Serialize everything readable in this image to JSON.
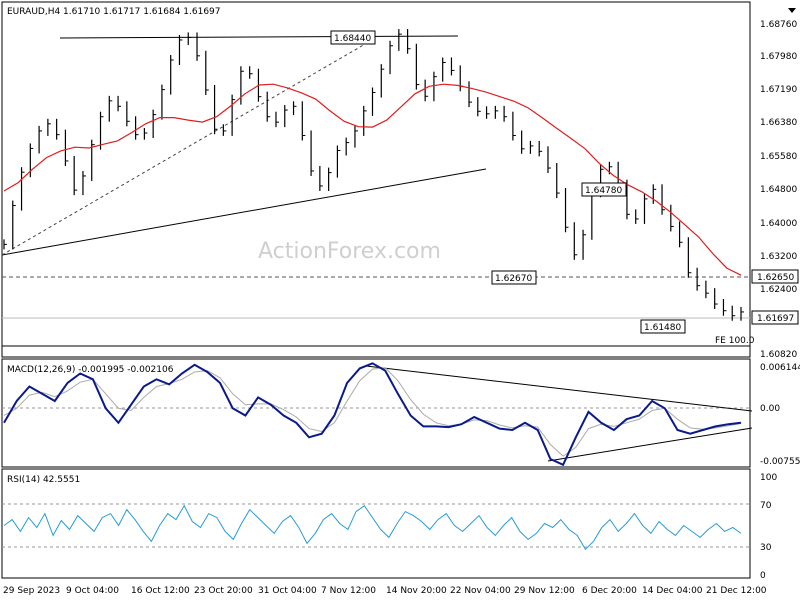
{
  "chart_data": [
    {
      "type": "candlestick",
      "title": "EURAUD,H4  1.61710  1.61717  1.61684  1.61697",
      "y_ticks": [
        "1.68760",
        "1.67980",
        "1.67190",
        "1.66380",
        "1.65580",
        "1.64800",
        "1.64000",
        "1.63200",
        "1.62400",
        "1.60820"
      ],
      "ylim": [
        1.6062,
        1.6913
      ],
      "price_bars": [
        1.6332,
        1.6425,
        1.6505,
        1.6562,
        1.6604,
        1.6621,
        1.6595,
        1.6532,
        1.6462,
        1.6496,
        1.6571,
        1.6638,
        1.6676,
        1.6663,
        1.6627,
        1.6595,
        1.6599,
        1.6643,
        1.6703,
        1.6774,
        1.6822,
        1.6828,
        1.6784,
        1.6702,
        1.6608,
        1.6604,
        1.6679,
        1.6747,
        1.6741,
        1.6686,
        1.6638,
        1.6625,
        1.6654,
        1.6663,
        1.6593,
        1.6508,
        1.6472,
        1.6504,
        1.6557,
        1.6576,
        1.6604,
        1.6652,
        1.6696,
        1.6752,
        1.6808,
        1.6836,
        1.6801,
        1.6715,
        1.6687,
        1.6734,
        1.6768,
        1.6749,
        1.6711,
        1.6673,
        1.6651,
        1.6645,
        1.6652,
        1.6638,
        1.6593,
        1.6561,
        1.6568,
        1.6555,
        1.6515,
        1.6455,
        1.6373,
        1.6307,
        1.6355,
        1.6457,
        1.6512,
        1.6518,
        1.6475,
        1.6404,
        1.6393,
        1.6441,
        1.6464,
        1.6415,
        1.6375,
        1.6337,
        1.6264,
        1.6233,
        1.6215,
        1.6189,
        1.6173,
        1.6161,
        1.617
      ],
      "ma_line": [
        1.646,
        1.648,
        1.6512,
        1.654,
        1.6556,
        1.6565,
        1.6563,
        1.6572,
        1.658,
        1.66,
        1.6621,
        1.6636,
        1.6636,
        1.663,
        1.6625,
        1.6638,
        1.6664,
        1.6693,
        1.6714,
        1.6716,
        1.6707,
        1.6695,
        1.668,
        1.6652,
        1.6627,
        1.6614,
        1.6613,
        1.663,
        1.6661,
        1.6693,
        1.6711,
        1.6716,
        1.6713,
        1.6706,
        1.6697,
        1.6686,
        1.6675,
        1.6659,
        1.6635,
        1.661,
        1.6586,
        1.6561,
        1.6526,
        1.6497,
        1.6475,
        1.6458,
        1.6436,
        1.641,
        1.638,
        1.635,
        1.631,
        1.6275,
        1.6258
      ],
      "levels": [
        {
          "value": 1.6265,
          "label": "1.62650",
          "style": "dashed"
        },
        {
          "value": 1.61697,
          "label": "1.61697",
          "style": "solid"
        },
        {
          "value": 1.6112,
          "label": "FE 100.0",
          "style": "solid"
        }
      ],
      "annotations": [
        {
          "label": "1.68440",
          "kind": "swing-high"
        },
        {
          "label": "1.64780",
          "kind": "swing-high"
        },
        {
          "label": "1.62670",
          "kind": "swing-low"
        },
        {
          "label": "1.61480",
          "kind": "swing-low"
        }
      ],
      "watermark": "ActionForex.com"
    },
    {
      "type": "line",
      "title": "MACD(12,26,9) -0.001995 -0.002106",
      "y_ticks": [
        "0.006144",
        "0.00",
        "-0.007555"
      ],
      "ylim": [
        -0.0081,
        0.0068
      ],
      "macd": [
        -0.002,
        0.001,
        0.003,
        0.002,
        0.001,
        0.0035,
        0.0048,
        0.004,
        0.0,
        -0.002,
        0.0005,
        0.003,
        0.004,
        0.0033,
        0.0048,
        0.006,
        0.005,
        0.0035,
        0.0,
        -0.001,
        0.0015,
        0.0005,
        -0.001,
        -0.002,
        -0.004,
        -0.0035,
        -0.001,
        0.0035,
        0.0055,
        0.0062,
        0.0052,
        0.002,
        -0.001,
        -0.0025,
        -0.0025,
        -0.0026,
        -0.0022,
        -0.0012,
        -0.002,
        -0.0028,
        -0.003,
        -0.002,
        -0.003,
        -0.007,
        -0.0078,
        -0.004,
        -0.0005,
        -0.002,
        -0.003,
        -0.0015,
        -0.001,
        0.001,
        0.0,
        -0.003,
        -0.0035,
        -0.003,
        -0.0025,
        -0.0022,
        -0.002
      ],
      "signal": [
        -0.001,
        0.0,
        0.0018,
        0.0022,
        0.0016,
        0.0024,
        0.0036,
        0.004,
        0.002,
        0.0,
        -0.0003,
        0.0015,
        0.003,
        0.0034,
        0.004,
        0.005,
        0.0052,
        0.0042,
        0.002,
        0.0005,
        0.0006,
        0.0006,
        -0.0002,
        -0.0012,
        -0.0028,
        -0.0032,
        -0.002,
        0.001,
        0.0038,
        0.0054,
        0.0056,
        0.0038,
        0.0012,
        -0.0008,
        -0.002,
        -0.0024,
        -0.0022,
        -0.0016,
        -0.0017,
        -0.0023,
        -0.0027,
        -0.0024,
        -0.0026,
        -0.005,
        -0.0066,
        -0.0054,
        -0.0028,
        -0.0022,
        -0.0025,
        -0.002,
        -0.0015,
        -0.0003,
        0.0,
        -0.0015,
        -0.0027,
        -0.0029,
        -0.0027,
        -0.0024,
        -0.0021
      ]
    },
    {
      "type": "line",
      "title": "RSI(14) 42.5551",
      "y_ticks": [
        "100",
        "70",
        "30",
        "0"
      ],
      "ylim": [
        0,
        100
      ],
      "levels": [
        70,
        30
      ],
      "rsi": [
        50,
        56,
        44,
        58,
        48,
        62,
        40,
        55,
        46,
        60,
        52,
        44,
        58,
        62,
        50,
        66,
        56,
        44,
        34,
        50,
        62,
        56,
        70,
        54,
        48,
        62,
        58,
        44,
        36,
        52,
        66,
        58,
        50,
        42,
        54,
        60,
        48,
        32,
        42,
        56,
        62,
        52,
        46,
        64,
        70,
        58,
        46,
        38,
        52,
        64,
        60,
        54,
        46,
        56,
        62,
        50,
        44,
        52,
        60,
        48,
        40,
        50,
        58,
        44,
        36,
        42,
        52,
        48,
        56,
        46,
        40,
        26,
        34,
        48,
        56,
        44,
        52,
        62,
        50,
        42,
        54,
        46,
        40,
        50,
        44,
        38,
        46,
        52,
        44,
        48,
        42
      ]
    }
  ],
  "x_labels": [
    "29 Sep 2023",
    "9 Oct 04:00",
    "16 Oct 12:00",
    "23 Oct 20:00",
    "31 Oct 04:00",
    "7 Nov 12:00",
    "14 Nov 20:00",
    "22 Nov 04:00",
    "29 Nov 12:00",
    "6 Dec 20:00",
    "14 Dec 04:00",
    "21 Dec 12:00"
  ],
  "colors": {
    "price": "#000000",
    "ma": "#e01e1e",
    "macd": "#0a1a8c",
    "signal": "#aaaaaa",
    "rsi": "#2a9bd6",
    "level_dash": "#555555",
    "grid": "#dddddd"
  }
}
